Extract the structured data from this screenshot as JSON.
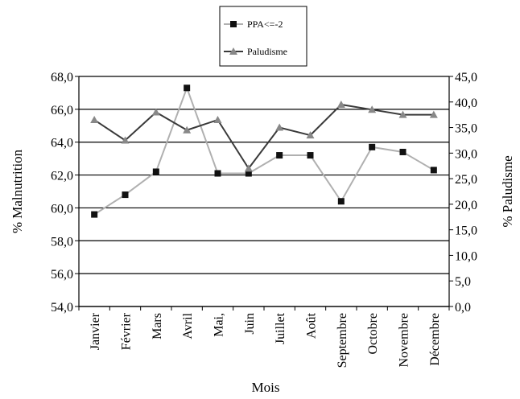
{
  "chart_data": {
    "type": "line",
    "title": "",
    "xlabel": "Mois",
    "ylabel_left": "% Malnutrition",
    "ylabel_right": "% Paludisme",
    "categories": [
      "Janvier",
      "Février",
      "Mars",
      "Avril",
      "Mai,",
      "Juin",
      "Juillet",
      "Août",
      "Septembre",
      "Octobre",
      "Novembre",
      "Décembre"
    ],
    "ylim_left": [
      54,
      68
    ],
    "ylim_right": [
      0,
      45
    ],
    "yticks_left": [
      "54,0",
      "56,0",
      "58,0",
      "60,0",
      "62,0",
      "64,0",
      "66,0",
      "68,0"
    ],
    "yticks_right": [
      "0,0",
      "5,0",
      "10,0",
      "15,0",
      "20,0",
      "25,0",
      "30,0",
      "35,0",
      "40,0",
      "45,0"
    ],
    "series": [
      {
        "name": "PPA<=-2",
        "axis": "left",
        "marker": "square",
        "color": "#b0b0b0",
        "marker_color": "#111111",
        "values": [
          59.6,
          60.8,
          62.2,
          67.3,
          62.1,
          62.1,
          63.2,
          63.2,
          60.4,
          63.7,
          63.4,
          62.3
        ]
      },
      {
        "name": "Paludisme",
        "axis": "right",
        "marker": "triangle",
        "color": "#3a3a3a",
        "marker_color": "#888888",
        "values": [
          36.5,
          32.5,
          38.0,
          34.5,
          36.5,
          27.0,
          35.0,
          33.5,
          39.5,
          38.5,
          37.5,
          37.5
        ]
      }
    ],
    "grid": true,
    "legend_position": "top-center"
  }
}
